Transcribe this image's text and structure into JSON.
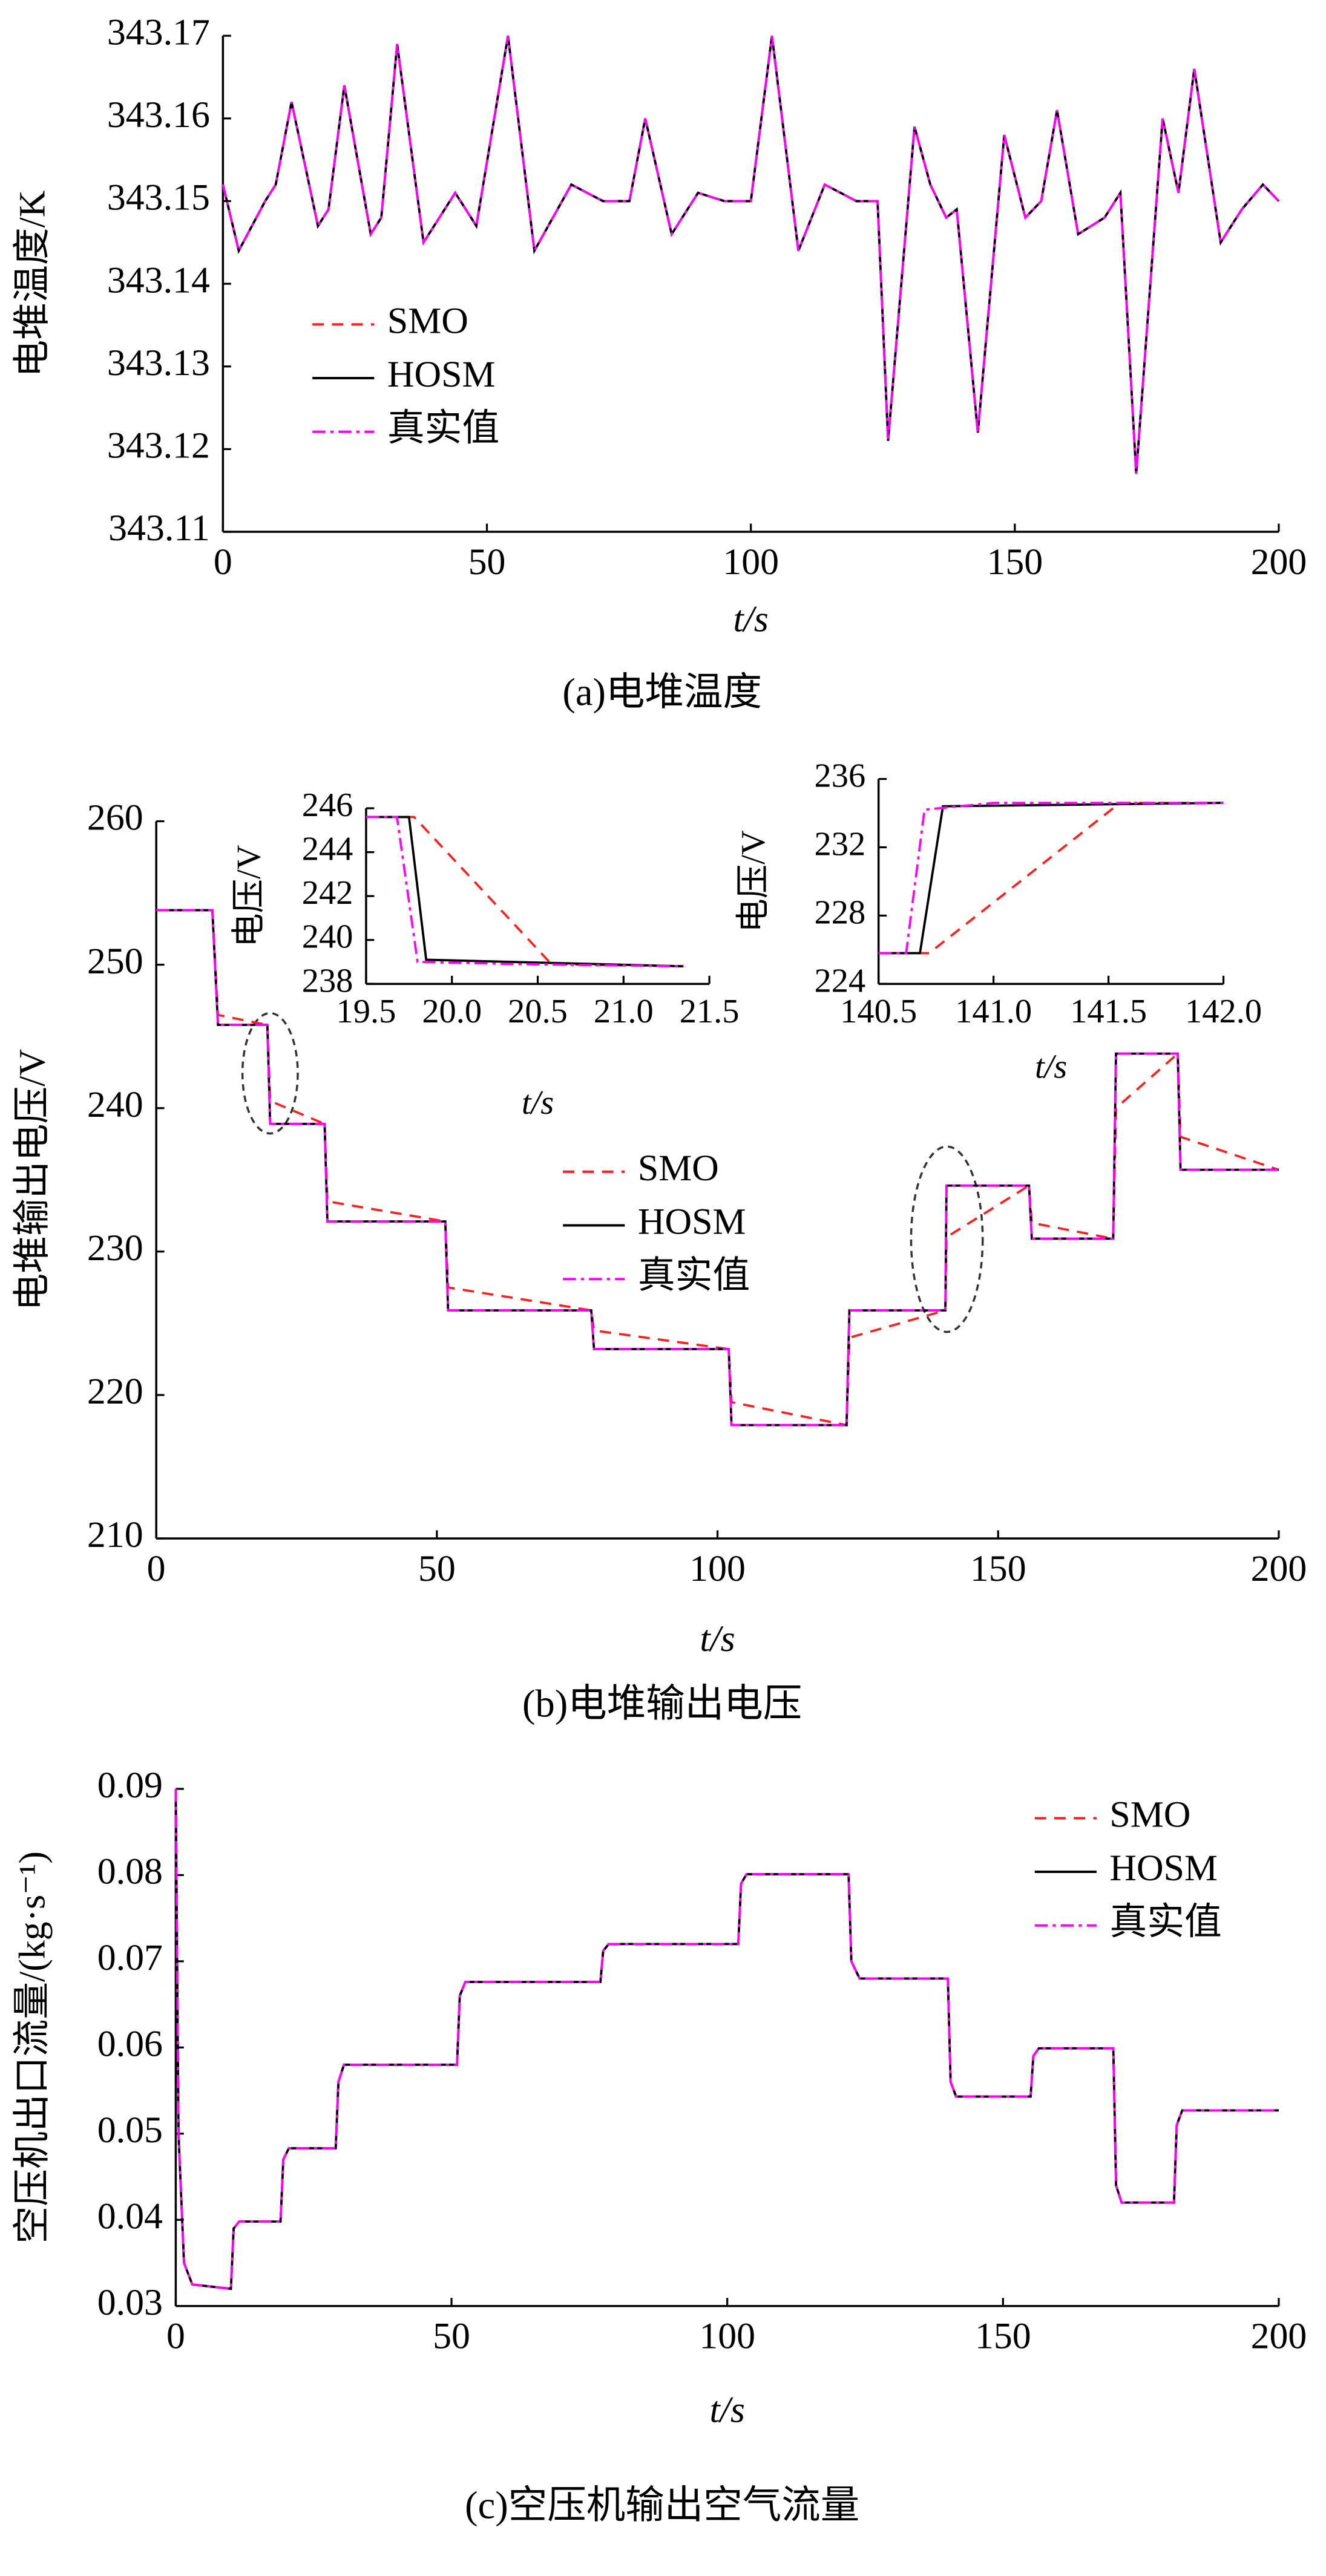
{
  "chart_data": [
    {
      "type": "line",
      "caption": "(a)电堆温度",
      "xlabel": "t/s",
      "ylabel": "电堆温度/K",
      "xlim": [
        0,
        200
      ],
      "xticks": [
        0,
        50,
        100,
        150,
        200
      ],
      "ylim": [
        343.11,
        343.17
      ],
      "yticks": [
        343.11,
        343.12,
        343.13,
        343.14,
        343.15,
        343.16,
        343.17
      ],
      "legend": "center left",
      "x": [
        0,
        3,
        8,
        10,
        13,
        18,
        20,
        23,
        28,
        30,
        33,
        38,
        44,
        48,
        54,
        59,
        66,
        72,
        77,
        80,
        85,
        90,
        95,
        100,
        104,
        109,
        114,
        120,
        124,
        126,
        131,
        134,
        137,
        139,
        143,
        148,
        152,
        155,
        158,
        162,
        167,
        170,
        173,
        178,
        181,
        184,
        189,
        193,
        197,
        200
      ],
      "series": [
        {
          "name": "SMO",
          "color": "#ff2020",
          "dash": "dashed",
          "values": [
            343.152,
            343.144,
            343.15,
            343.152,
            343.162,
            343.147,
            343.149,
            343.164,
            343.146,
            343.148,
            343.169,
            343.145,
            343.151,
            343.147,
            343.17,
            343.144,
            343.152,
            343.15,
            343.15,
            343.16,
            343.146,
            343.151,
            343.15,
            343.15,
            343.17,
            343.144,
            343.152,
            343.15,
            343.15,
            343.121,
            343.159,
            343.152,
            343.148,
            343.149,
            343.122,
            343.158,
            343.148,
            343.15,
            343.161,
            343.146,
            343.148,
            343.151,
            343.117,
            343.16,
            343.151,
            343.166,
            343.145,
            343.149,
            343.152,
            343.15
          ]
        },
        {
          "name": "HOSM",
          "color": "#000000",
          "dash": "solid",
          "values": [
            343.152,
            343.144,
            343.15,
            343.152,
            343.162,
            343.147,
            343.149,
            343.164,
            343.146,
            343.148,
            343.169,
            343.145,
            343.151,
            343.147,
            343.17,
            343.144,
            343.152,
            343.15,
            343.15,
            343.16,
            343.146,
            343.151,
            343.15,
            343.15,
            343.17,
            343.144,
            343.152,
            343.15,
            343.15,
            343.121,
            343.159,
            343.152,
            343.148,
            343.149,
            343.122,
            343.158,
            343.148,
            343.15,
            343.161,
            343.146,
            343.148,
            343.151,
            343.117,
            343.16,
            343.151,
            343.166,
            343.145,
            343.149,
            343.152,
            343.15
          ]
        },
        {
          "name": "真实值",
          "color": "#ff00ff",
          "dash": "dashdot",
          "values": [
            343.152,
            343.144,
            343.15,
            343.152,
            343.162,
            343.147,
            343.149,
            343.164,
            343.146,
            343.148,
            343.169,
            343.145,
            343.151,
            343.147,
            343.17,
            343.144,
            343.152,
            343.15,
            343.15,
            343.16,
            343.146,
            343.151,
            343.15,
            343.15,
            343.17,
            343.144,
            343.152,
            343.15,
            343.15,
            343.121,
            343.159,
            343.152,
            343.148,
            343.149,
            343.122,
            343.158,
            343.148,
            343.15,
            343.161,
            343.146,
            343.148,
            343.151,
            343.117,
            343.16,
            343.151,
            343.166,
            343.145,
            343.149,
            343.152,
            343.15
          ]
        }
      ]
    },
    {
      "type": "line",
      "caption": "(b)电堆输出电压",
      "xlabel": "t/s",
      "ylabel": "电堆输出电压/V",
      "xlim": [
        0,
        200
      ],
      "xticks": [
        0,
        50,
        100,
        150,
        200
      ],
      "ylim": [
        210,
        260
      ],
      "yticks": [
        210,
        220,
        230,
        240,
        250,
        260
      ],
      "legend": "center",
      "x": [
        0,
        10,
        11,
        19.8,
        20.3,
        30,
        30.5,
        51.5,
        52,
        77.5,
        78,
        102,
        102.5,
        123,
        123.5,
        140.6,
        140.8,
        155.5,
        156,
        170.5,
        171,
        182,
        182.5,
        200
      ],
      "series": [
        {
          "name": "SMO",
          "color": "#ff2020",
          "dash": "dashed",
          "values": [
            253.8,
            253.8,
            246.5,
            245.8,
            240.5,
            238.9,
            233.5,
            232.1,
            227.5,
            225.9,
            224.5,
            223.2,
            219.5,
            217.9,
            224,
            225.9,
            231,
            234.6,
            232,
            230.9,
            240,
            243.8,
            238,
            235.7
          ]
        },
        {
          "name": "HOSM",
          "color": "#000000",
          "dash": "solid",
          "values": [
            253.8,
            253.8,
            245.8,
            245.8,
            238.9,
            238.9,
            232.1,
            232.1,
            225.9,
            225.9,
            223.2,
            223.2,
            217.9,
            217.9,
            225.9,
            225.9,
            234.6,
            234.6,
            230.9,
            230.9,
            243.8,
            243.8,
            235.7,
            235.7
          ]
        },
        {
          "name": "真实值",
          "color": "#ff00ff",
          "dash": "dashdot",
          "values": [
            253.8,
            253.8,
            245.8,
            245.8,
            238.9,
            238.9,
            232.1,
            232.1,
            225.9,
            225.9,
            223.2,
            223.2,
            217.9,
            217.9,
            225.9,
            225.9,
            234.6,
            234.6,
            230.9,
            230.9,
            243.8,
            243.8,
            235.7,
            235.7
          ]
        }
      ]
    },
    {
      "type": "line",
      "xlabel": "t/s",
      "ylabel": "电压/V",
      "xlim": [
        19.5,
        21.5
      ],
      "xticks": [
        19.5,
        {
          "value": 20,
          "label": "20.0"
        },
        20.5,
        {
          "value": 21,
          "label": "21.0"
        },
        21.5
      ],
      "ylim": [
        238,
        246
      ],
      "yticks": [
        238,
        240,
        242,
        244,
        246
      ],
      "series": [
        {
          "name": "SMO",
          "color": "#ff2020",
          "dash": "dashed",
          "x": [
            19.5,
            19.78,
            20.58,
            21.35
          ],
          "values": [
            245.6,
            245.6,
            238.9,
            238.8
          ]
        },
        {
          "name": "HOSM",
          "color": "#000000",
          "dash": "solid",
          "x": [
            19.5,
            19.75,
            19.85,
            21.35
          ],
          "values": [
            245.6,
            245.6,
            239.1,
            238.8
          ]
        },
        {
          "name": "真实值",
          "color": "#ff00ff",
          "dash": "dashdot",
          "x": [
            19.5,
            19.68,
            19.8,
            20.4,
            21.35
          ],
          "values": [
            245.6,
            245.6,
            239,
            238.9,
            238.8
          ]
        }
      ]
    },
    {
      "type": "line",
      "xlabel": "t/s",
      "ylabel": "电压/V",
      "xlim": [
        140.5,
        142
      ],
      "xticks": [
        140.5,
        {
          "value": 141,
          "label": "141.0"
        },
        141.5,
        {
          "value": 142,
          "label": "142.0"
        }
      ],
      "ylim": [
        224,
        236
      ],
      "yticks": [
        224,
        228,
        232,
        236
      ],
      "series": [
        {
          "name": "SMO",
          "color": "#ff2020",
          "dash": "dashed",
          "x": [
            140.5,
            140.72,
            141.55,
            142
          ],
          "values": [
            225.8,
            225.8,
            234.6,
            234.6
          ]
        },
        {
          "name": "HOSM",
          "color": "#000000",
          "dash": "solid",
          "x": [
            140.5,
            140.68,
            140.78,
            142
          ],
          "values": [
            225.8,
            225.8,
            234.4,
            234.6
          ]
        },
        {
          "name": "真实值",
          "color": "#ff00ff",
          "dash": "dashdot",
          "x": [
            140.5,
            140.62,
            140.7,
            141,
            142
          ],
          "values": [
            225.8,
            225.8,
            234.2,
            234.6,
            234.6
          ]
        }
      ]
    },
    {
      "type": "line",
      "caption": "(c)空压机输出空气流量",
      "xlabel": "t/s",
      "ylabel": "空压机出口流量/(kg·s⁻¹)",
      "xlim": [
        0,
        200
      ],
      "xticks": [
        0,
        50,
        100,
        150,
        200
      ],
      "ylim": [
        0.03,
        0.09
      ],
      "yticks": [
        0.03,
        0.04,
        0.05,
        0.06,
        0.07,
        0.08,
        0.09
      ],
      "legend": "upper right",
      "x": [
        0,
        0.5,
        1.5,
        3,
        10,
        10.5,
        11.5,
        19,
        19.5,
        20.5,
        29,
        29.5,
        30.5,
        51,
        51.5,
        52.5,
        77,
        77.5,
        78.5,
        102,
        102.5,
        103.5,
        122,
        122.5,
        124,
        140,
        140.5,
        141.5,
        155,
        155.5,
        156.5,
        170,
        170.5,
        171.5,
        181,
        181.5,
        182.5,
        200
      ],
      "series": [
        {
          "name": "SMO",
          "color": "#ff2020",
          "dash": "dashed",
          "values": [
            0.09,
            0.05,
            0.035,
            0.0325,
            0.032,
            0.039,
            0.0398,
            0.0398,
            0.047,
            0.0483,
            0.0483,
            0.056,
            0.058,
            0.058,
            0.066,
            0.0676,
            0.0676,
            0.0712,
            0.072,
            0.072,
            0.079,
            0.0801,
            0.0801,
            0.07,
            0.068,
            0.068,
            0.056,
            0.0543,
            0.0543,
            0.059,
            0.0599,
            0.0599,
            0.044,
            0.042,
            0.042,
            0.051,
            0.0527,
            0.0527
          ]
        },
        {
          "name": "HOSM",
          "color": "#000000",
          "dash": "solid",
          "values": [
            0.09,
            0.05,
            0.035,
            0.0325,
            0.032,
            0.039,
            0.0398,
            0.0398,
            0.047,
            0.0483,
            0.0483,
            0.056,
            0.058,
            0.058,
            0.066,
            0.0676,
            0.0676,
            0.0712,
            0.072,
            0.072,
            0.079,
            0.0801,
            0.0801,
            0.07,
            0.068,
            0.068,
            0.056,
            0.0543,
            0.0543,
            0.059,
            0.0599,
            0.0599,
            0.044,
            0.042,
            0.042,
            0.051,
            0.0527,
            0.0527
          ]
        },
        {
          "name": "真实值",
          "color": "#ff00ff",
          "dash": "dashdot",
          "values": [
            0.09,
            0.05,
            0.035,
            0.0325,
            0.032,
            0.039,
            0.0398,
            0.0398,
            0.047,
            0.0483,
            0.0483,
            0.056,
            0.058,
            0.058,
            0.066,
            0.0676,
            0.0676,
            0.0712,
            0.072,
            0.072,
            0.079,
            0.0801,
            0.0801,
            0.07,
            0.068,
            0.068,
            0.056,
            0.0543,
            0.0543,
            0.059,
            0.0599,
            0.0599,
            0.044,
            0.042,
            0.042,
            0.051,
            0.0527,
            0.0527
          ]
        }
      ]
    }
  ]
}
